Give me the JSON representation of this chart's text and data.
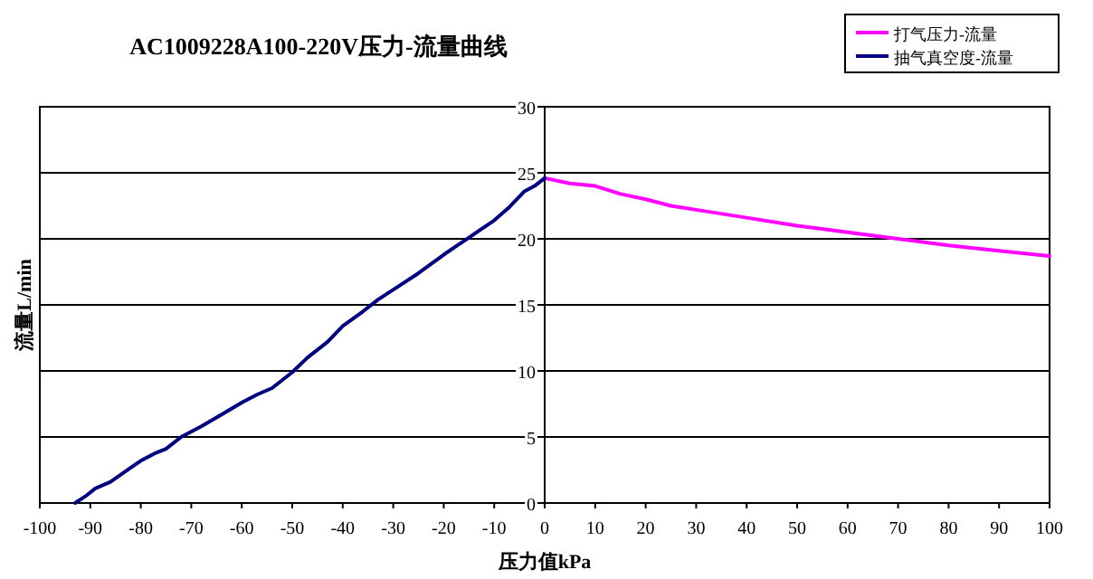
{
  "chart_data": {
    "type": "line",
    "title": "AC1009228A100-220V压力-流量曲线",
    "xlabel": "压力值kPa",
    "ylabel": "流量L/min",
    "xlim": [
      -100,
      100
    ],
    "xticks": [
      -100,
      -90,
      -80,
      -70,
      -60,
      -50,
      -40,
      -30,
      -20,
      -10,
      0,
      10,
      20,
      30,
      40,
      50,
      60,
      70,
      80,
      90,
      100
    ],
    "ylim": [
      0,
      30
    ],
    "yticks": [
      0,
      5,
      10,
      15,
      20,
      25,
      30
    ],
    "grid": "y",
    "legend": "top right",
    "marker": "none",
    "line_style": "solid",
    "series": [
      {
        "name": "打气压力-流量",
        "color": "#ff00ff",
        "x": [
          0,
          5,
          10,
          15,
          20,
          25,
          30,
          40,
          50,
          60,
          70,
          80,
          90,
          100
        ],
        "values": [
          24.6,
          24.2,
          24,
          23.4,
          23,
          22.5,
          22.2,
          21.6,
          21,
          20.5,
          20,
          19.5,
          19.1,
          18.7
        ]
      },
      {
        "name": "抽气真空度-流量",
        "color": "#000080",
        "x": [
          -93,
          -91,
          -89,
          -86,
          -83,
          -80,
          -77,
          -75,
          -72,
          -68,
          -64,
          -60,
          -57,
          -54,
          -50,
          -47,
          -43,
          -40,
          -36,
          -33,
          -29,
          -25,
          -20,
          -15,
          -10,
          -7,
          -4,
          -2,
          0
        ],
        "values": [
          0,
          0.5,
          1.1,
          1.6,
          2.4,
          3.2,
          3.8,
          4.1,
          5,
          5.8,
          6.7,
          7.6,
          8.2,
          8.7,
          9.9,
          11,
          12.2,
          13.4,
          14.5,
          15.4,
          16.4,
          17.4,
          18.8,
          20.1,
          21.4,
          22.4,
          23.6,
          24,
          24.6
        ]
      }
    ]
  }
}
